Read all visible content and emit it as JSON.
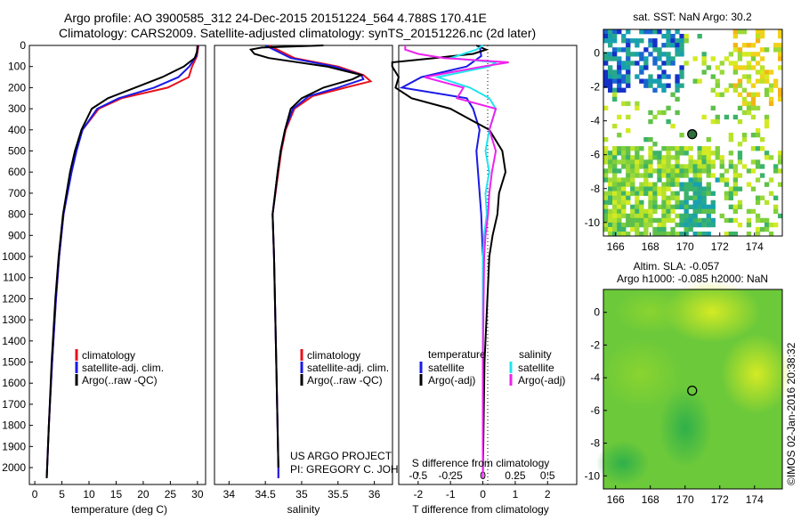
{
  "header": {
    "line1": "Argo profile: AO 3900585_312 24-Dec-2015 20151224_564 4.788S 170.41E",
    "line2": "Climatology: CARS2009. Satellite-adjusted climatology: synTS_20151226.nc (2d later)"
  },
  "colors": {
    "clim": "#e8101a",
    "sat": "#1a1ae6",
    "argo": "#000000",
    "sat_s": "#22e4f0",
    "argo_s": "#ee22ee"
  },
  "depth_ticks": [
    "0",
    "100",
    "200",
    "300",
    "400",
    "500",
    "600",
    "700",
    "800",
    "900",
    "1000",
    "1100",
    "1200",
    "1300",
    "1400",
    "1500",
    "1600",
    "1700",
    "1800",
    "1900",
    "2000"
  ],
  "chart_data": [
    {
      "type": "line",
      "panel": "temperature",
      "xlabel": "temperature (deg C)",
      "ylabel": "depth",
      "xlim": [
        -1,
        31.5
      ],
      "ylim": [
        2080,
        0
      ],
      "xticks": [
        "0",
        "5",
        "10",
        "15",
        "20",
        "25",
        "30"
      ],
      "legend": {
        "clim": "climatology",
        "sat": "satellite-adj. clim.",
        "argo": "Argo(..raw -QC)"
      },
      "series": [
        {
          "name": "climatology",
          "depth": [
            0,
            50,
            100,
            150,
            200,
            250,
            300,
            400,
            500,
            600,
            800,
            1000,
            1200,
            1500,
            1800,
            2050
          ],
          "values": [
            30.2,
            29.9,
            29,
            28.4,
            24.5,
            16,
            11.8,
            8.8,
            7.6,
            6.6,
            5.3,
            4.5,
            3.9,
            3.2,
            2.6,
            2.2
          ]
        },
        {
          "name": "satellite-adj. clim.",
          "depth": [
            0,
            50,
            100,
            150,
            200,
            250,
            300,
            400,
            500,
            600,
            800,
            1000,
            1200,
            1500,
            1800,
            2050
          ],
          "values": [
            30.1,
            29.8,
            28.5,
            26.5,
            22,
            15.5,
            11.5,
            8.8,
            7.7,
            6.8,
            5.3,
            4.5,
            3.9,
            3.2,
            2.6,
            2.2
          ]
        },
        {
          "name": "Argo(..raw -QC)",
          "depth": [
            0,
            30,
            60,
            100,
            150,
            200,
            250,
            300,
            400,
            500,
            600,
            800,
            1000,
            1200,
            1500,
            1800,
            2050
          ],
          "values": [
            30,
            29.9,
            29.5,
            27.5,
            23.5,
            18.5,
            13.5,
            10.5,
            8.6,
            7.4,
            6.5,
            5.2,
            4.4,
            3.8,
            3.1,
            2.6,
            2.2
          ]
        }
      ]
    },
    {
      "type": "line",
      "panel": "salinity",
      "xlabel": "salinity",
      "ylabel": "depth",
      "xlim": [
        33.8,
        36.25
      ],
      "ylim": [
        2080,
        0
      ],
      "xticks": [
        "34",
        "34.5",
        "35",
        "35.5",
        "36"
      ],
      "legend": {
        "clim": "climatology",
        "sat": "satellite-adj. clim.",
        "argo": "Argo(..raw -QC)"
      },
      "annotation": {
        "line1": "US ARGO PROJECT",
        "line2": "PI: GREGORY C. JOHNSON"
      },
      "series": [
        {
          "name": "climatology",
          "depth": [
            0,
            60,
            100,
            140,
            170,
            200,
            240,
            300,
            400,
            500,
            600,
            800,
            1000,
            1500,
            2000,
            2050
          ],
          "values": [
            34.55,
            34.9,
            35.5,
            35.85,
            35.95,
            35.6,
            35.15,
            34.9,
            34.78,
            34.72,
            34.68,
            34.6,
            34.62,
            34.65,
            34.68,
            34.68
          ]
        },
        {
          "name": "satellite-adj. clim.",
          "depth": [
            0,
            60,
            100,
            140,
            160,
            200,
            240,
            300,
            400,
            500,
            600,
            800,
            1000,
            1500,
            2000,
            2050
          ],
          "values": [
            34.5,
            34.85,
            35.45,
            35.82,
            35.85,
            35.5,
            35.1,
            34.88,
            34.77,
            34.71,
            34.67,
            34.6,
            34.62,
            34.65,
            34.68,
            34.68
          ]
        },
        {
          "name": "Argo(..raw -QC)",
          "depth": [
            0,
            10,
            20,
            40,
            60,
            100,
            140,
            160,
            200,
            250,
            300,
            400,
            500,
            600,
            800,
            1000,
            1500,
            2000
          ],
          "values": [
            35.3,
            34.45,
            34.3,
            34.35,
            34.55,
            35.35,
            35.82,
            35.7,
            35.3,
            35,
            34.85,
            34.77,
            34.71,
            34.67,
            34.6,
            34.62,
            34.65,
            34.68
          ]
        }
      ]
    },
    {
      "type": "line",
      "panel": "difference",
      "xlabel": "T difference from climatology",
      "xlabel_top": "S difference from climatology",
      "ylim": [
        2080,
        0
      ],
      "xlim_T": [
        -2.6,
        2.9
      ],
      "xticks_T": [
        "-2",
        "-1",
        "0",
        "1",
        "2"
      ],
      "xticks_S": [
        "-0.5",
        "-0.25",
        "0",
        "0.25",
        "0.5"
      ],
      "legend": {
        "temp_title": "temperature",
        "sal_title": "salinity",
        "sat": "satellite",
        "argo": "Argo(-adj)"
      },
      "series": [
        {
          "name": "T satellite",
          "depth": [
            0,
            50,
            100,
            150,
            200,
            250,
            300,
            400,
            500,
            600,
            700,
            800,
            1000,
            1500,
            2050
          ],
          "values": [
            -0.1,
            -0.05,
            -0.5,
            -1.9,
            -2.5,
            -0.5,
            -0.3,
            -0.1,
            -0.2,
            -0.15,
            -0.1,
            -0.05,
            0,
            0,
            0
          ]
        },
        {
          "name": "T Argo(-adj)",
          "depth": [
            0,
            20,
            40,
            60,
            80,
            100,
            150,
            200,
            250,
            300,
            350,
            400,
            500,
            600,
            700,
            800,
            900,
            1000,
            1500,
            2050
          ],
          "values": [
            -0.2,
            0.1,
            -0.3,
            -1.5,
            -2.8,
            -2.8,
            -2.6,
            -2.7,
            -2.2,
            -1.0,
            -0.4,
            0.2,
            0.6,
            0.7,
            0.5,
            0.45,
            0.3,
            0.2,
            0.05,
            0
          ]
        },
        {
          "name": "S satellite",
          "depth": [
            0,
            20,
            40,
            60,
            80,
            100,
            150,
            200,
            250,
            300,
            400,
            500,
            600,
            700,
            800,
            900,
            1000,
            1500,
            2050
          ],
          "values": [
            0.0,
            -0.05,
            -0.15,
            -0.25,
            0.1,
            0.05,
            -0.35,
            -0.1,
            0.05,
            0.1,
            0.05,
            0.02,
            0.05,
            0.02,
            0.03,
            0.01,
            0,
            0,
            0
          ]
        },
        {
          "name": "S Argo(-adj)",
          "depth": [
            0,
            20,
            40,
            60,
            80,
            100,
            150,
            200,
            250,
            300,
            400,
            500,
            600,
            700,
            800,
            900,
            1000,
            1500,
            2050
          ],
          "values": [
            -0.6,
            -0.6,
            -0.5,
            -0.3,
            0.2,
            0.0,
            -0.45,
            -0.15,
            -0.2,
            0.1,
            0.05,
            0.1,
            0.07,
            0.05,
            0.04,
            0.02,
            0.01,
            0,
            0
          ]
        }
      ]
    },
    {
      "type": "heatmap",
      "panel": "sst-map",
      "title": "sat. SST: NaN Argo: 30.2",
      "xlim": [
        165.3,
        175.6
      ],
      "ylim": [
        -10.8,
        1.4
      ],
      "xticks": [
        "166",
        "168",
        "170",
        "172",
        "174"
      ],
      "yticks": [
        "0",
        "-2",
        "-4",
        "-6",
        "-8",
        "-10"
      ],
      "argo_position": {
        "lon": 170.41,
        "lat": -4.788
      }
    },
    {
      "type": "heatmap",
      "panel": "sla-map",
      "title1": "Altim. SLA: -0.057",
      "title2": "Argo h1000: -0.085 h2000: NaN",
      "xlim": [
        165.3,
        175.6
      ],
      "ylim": [
        -10.8,
        1.4
      ],
      "xticks": [
        "166",
        "168",
        "170",
        "172",
        "174"
      ],
      "yticks": [
        "0",
        "-2",
        "-4",
        "-6",
        "-8",
        "-10"
      ],
      "argo_position": {
        "lon": 170.41,
        "lat": -4.788
      }
    }
  ],
  "credit": "©IMOS 02-Jan-2016 20:38:32"
}
